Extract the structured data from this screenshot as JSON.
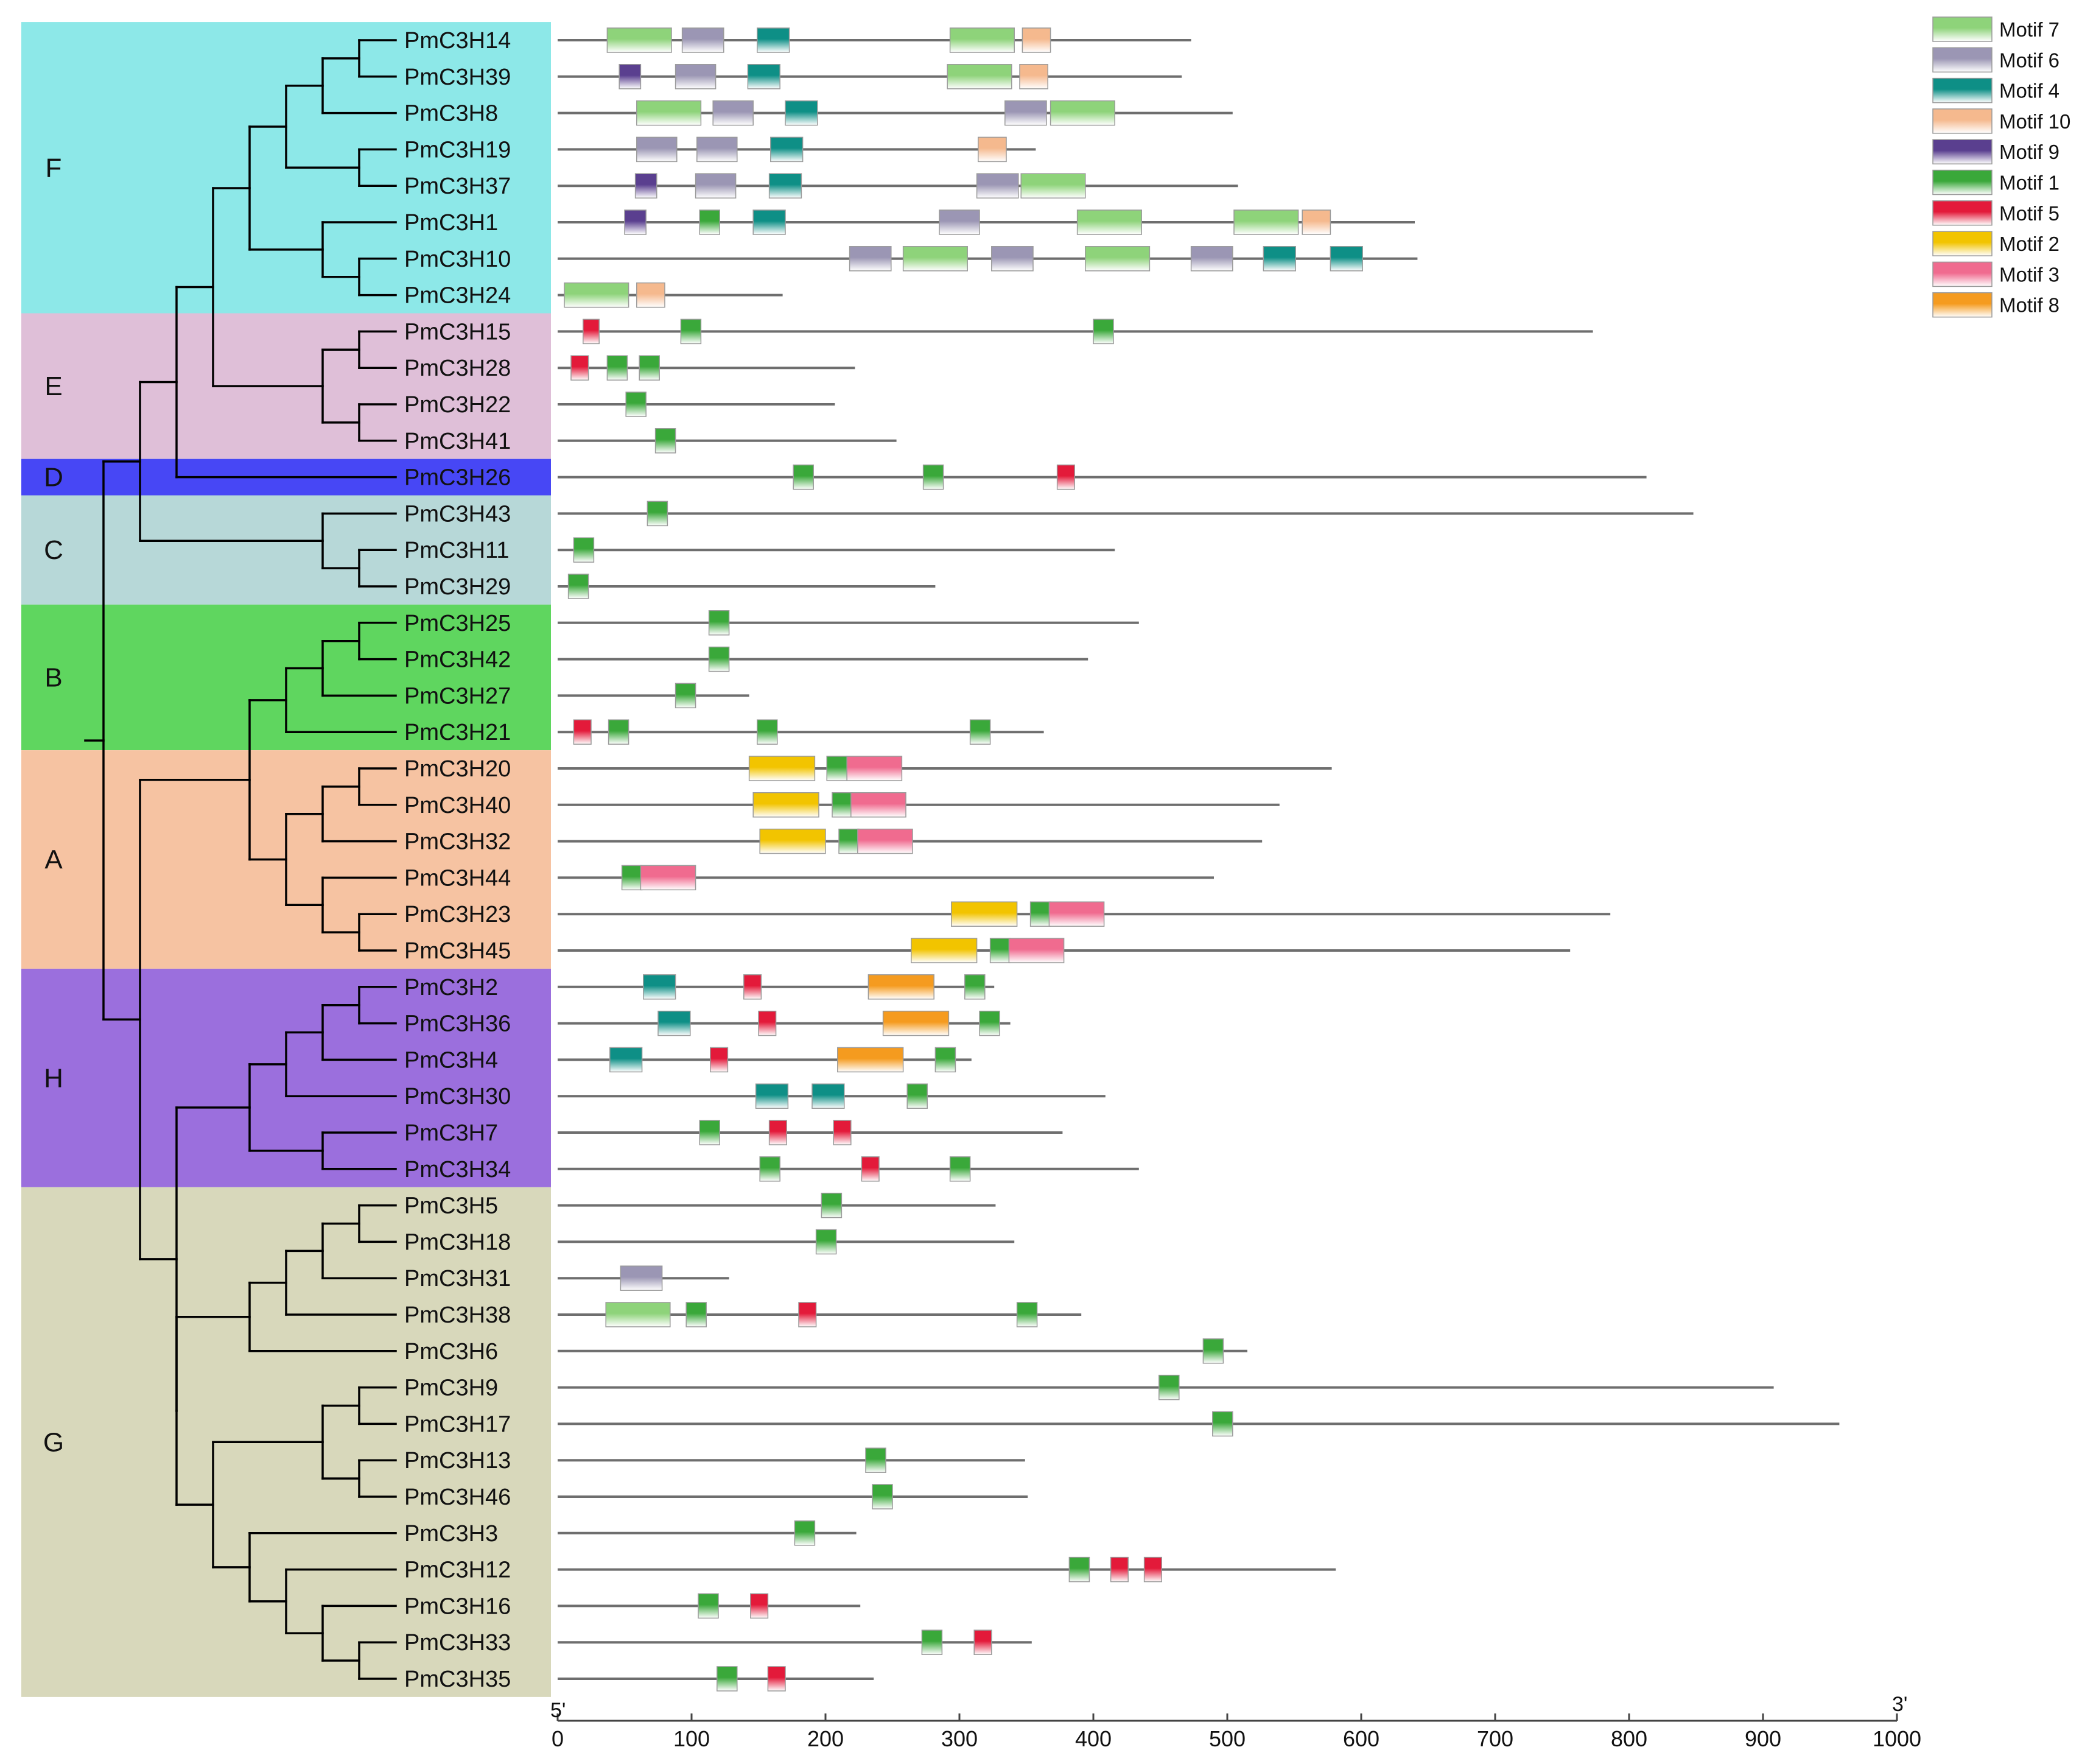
{
  "motifs": [
    {
      "id": "m7",
      "name": "Motif 7",
      "color": "#8ed37a"
    },
    {
      "id": "m6",
      "name": "Motif 6",
      "color": "#9b96b4"
    },
    {
      "id": "m4",
      "name": "Motif 4",
      "color": "#0e8f86"
    },
    {
      "id": "m10",
      "name": "Motif 10",
      "color": "#f5b98e"
    },
    {
      "id": "m9",
      "name": "Motif 9",
      "color": "#5a3f8f"
    },
    {
      "id": "m1",
      "name": "Motif 1",
      "color": "#3aa83a"
    },
    {
      "id": "m5",
      "name": "Motif 5",
      "color": "#e31a3a"
    },
    {
      "id": "m2",
      "name": "Motif 2",
      "color": "#f2c400"
    },
    {
      "id": "m3",
      "name": "Motif 3",
      "color": "#f06b8f"
    },
    {
      "id": "m8",
      "name": "Motif 8",
      "color": "#f59b1f"
    }
  ],
  "groups": [
    {
      "label": "F",
      "color": "#8de8e8",
      "first": 0,
      "last": 7
    },
    {
      "label": "E",
      "color": "#dfbfd8",
      "first": 8,
      "last": 11
    },
    {
      "label": "D",
      "color": "#4747f5",
      "first": 12,
      "last": 12
    },
    {
      "label": "C",
      "color": "#b7d8d8",
      "first": 13,
      "last": 15
    },
    {
      "label": "B",
      "color": "#5fd65f",
      "first": 16,
      "last": 19
    },
    {
      "label": "A",
      "color": "#f6c3a2",
      "first": 20,
      "last": 25
    },
    {
      "label": "H",
      "color": "#9b6fdd",
      "first": 26,
      "last": 31
    },
    {
      "label": "G",
      "color": "#d8d8bb",
      "first": 32,
      "last": 45
    }
  ],
  "axis": {
    "min": 0,
    "max": 1000,
    "ticks": [
      0,
      100,
      200,
      300,
      400,
      500,
      600,
      700,
      800,
      900,
      1000
    ],
    "start_label": "5'",
    "end_label": "3'"
  },
  "genes": [
    {
      "name": "PmC3H14",
      "length": 473,
      "motifs": [
        [
          "m7",
          37,
          85
        ],
        [
          "m6",
          93,
          124
        ],
        [
          "m4",
          149,
          173
        ],
        [
          "m7",
          293,
          341
        ],
        [
          "m10",
          347,
          368
        ]
      ]
    },
    {
      "name": "PmC3H39",
      "length": 466,
      "motifs": [
        [
          "m9",
          46,
          62
        ],
        [
          "m6",
          88,
          118
        ],
        [
          "m4",
          142,
          166
        ],
        [
          "m7",
          291,
          339
        ],
        [
          "m10",
          345,
          366
        ]
      ]
    },
    {
      "name": "PmC3H8",
      "length": 504,
      "motifs": [
        [
          "m7",
          59,
          107
        ],
        [
          "m6",
          116,
          146
        ],
        [
          "m4",
          170,
          194
        ],
        [
          "m6",
          334,
          365
        ],
        [
          "m7",
          368,
          416
        ]
      ]
    },
    {
      "name": "PmC3H19",
      "length": 357,
      "motifs": [
        [
          "m6",
          59,
          89
        ],
        [
          "m6",
          104,
          134
        ],
        [
          "m4",
          159,
          183
        ],
        [
          "m10",
          314,
          335
        ]
      ]
    },
    {
      "name": "PmC3H37",
      "length": 508,
      "motifs": [
        [
          "m9",
          58,
          74
        ],
        [
          "m6",
          103,
          133
        ],
        [
          "m4",
          158,
          182
        ],
        [
          "m6",
          313,
          344
        ],
        [
          "m7",
          346,
          394
        ]
      ]
    },
    {
      "name": "PmC3H1",
      "length": 640,
      "motifs": [
        [
          "m9",
          50,
          66
        ],
        [
          "m1",
          106,
          121
        ],
        [
          "m4",
          146,
          170
        ],
        [
          "m6",
          285,
          315
        ],
        [
          "m7",
          388,
          436
        ],
        [
          "m7",
          505,
          553
        ],
        [
          "m10",
          556,
          577
        ]
      ]
    },
    {
      "name": "PmC3H10",
      "length": 642,
      "motifs": [
        [
          "m6",
          218,
          249
        ],
        [
          "m7",
          258,
          306
        ],
        [
          "m6",
          324,
          355
        ],
        [
          "m7",
          394,
          442
        ],
        [
          "m6",
          473,
          504
        ],
        [
          "m4",
          527,
          551
        ],
        [
          "m4",
          577,
          601
        ]
      ]
    },
    {
      "name": "PmC3H24",
      "length": 168,
      "motifs": [
        [
          "m7",
          5,
          53
        ],
        [
          "m10",
          59,
          80
        ]
      ]
    },
    {
      "name": "PmC3H15",
      "length": 773,
      "motifs": [
        [
          "m5",
          19,
          31
        ],
        [
          "m1",
          92,
          107
        ],
        [
          "m1",
          400,
          415
        ]
      ]
    },
    {
      "name": "PmC3H28",
      "length": 222,
      "motifs": [
        [
          "m5",
          10,
          23
        ],
        [
          "m1",
          37,
          52
        ],
        [
          "m1",
          61,
          76
        ]
      ]
    },
    {
      "name": "PmC3H22",
      "length": 207,
      "motifs": [
        [
          "m1",
          51,
          66
        ]
      ]
    },
    {
      "name": "PmC3H41",
      "length": 253,
      "motifs": [
        [
          "m1",
          73,
          88
        ]
      ]
    },
    {
      "name": "PmC3H26",
      "length": 813,
      "motifs": [
        [
          "m1",
          176,
          191
        ],
        [
          "m1",
          273,
          288
        ],
        [
          "m5",
          373,
          386
        ]
      ]
    },
    {
      "name": "PmC3H43",
      "length": 848,
      "motifs": [
        [
          "m1",
          67,
          82
        ]
      ]
    },
    {
      "name": "PmC3H11",
      "length": 416,
      "motifs": [
        [
          "m1",
          12,
          27
        ]
      ]
    },
    {
      "name": "PmC3H29",
      "length": 282,
      "motifs": [
        [
          "m1",
          8,
          23
        ]
      ]
    },
    {
      "name": "PmC3H25",
      "length": 434,
      "motifs": [
        [
          "m1",
          113,
          128
        ]
      ]
    },
    {
      "name": "PmC3H42",
      "length": 396,
      "motifs": [
        [
          "m1",
          113,
          128
        ]
      ]
    },
    {
      "name": "PmC3H27",
      "length": 143,
      "motifs": [
        [
          "m1",
          88,
          103
        ]
      ]
    },
    {
      "name": "PmC3H21",
      "length": 363,
      "motifs": [
        [
          "m5",
          12,
          25
        ],
        [
          "m1",
          38,
          53
        ],
        [
          "m1",
          149,
          164
        ],
        [
          "m1",
          308,
          323
        ]
      ]
    },
    {
      "name": "PmC3H20",
      "length": 578,
      "motifs": [
        [
          "m2",
          143,
          192
        ],
        [
          "m1",
          201,
          216
        ],
        [
          "m3",
          216,
          257
        ]
      ]
    },
    {
      "name": "PmC3H40",
      "length": 539,
      "motifs": [
        [
          "m2",
          146,
          195
        ],
        [
          "m1",
          205,
          220
        ],
        [
          "m3",
          219,
          260
        ]
      ]
    },
    {
      "name": "PmC3H32",
      "length": 526,
      "motifs": [
        [
          "m2",
          151,
          200
        ],
        [
          "m1",
          210,
          225
        ],
        [
          "m3",
          224,
          265
        ]
      ]
    },
    {
      "name": "PmC3H44",
      "length": 490,
      "motifs": [
        [
          "m1",
          48,
          63
        ],
        [
          "m3",
          62,
          103
        ]
      ]
    },
    {
      "name": "PmC3H23",
      "length": 786,
      "motifs": [
        [
          "m2",
          294,
          343
        ],
        [
          "m1",
          353,
          368
        ],
        [
          "m3",
          367,
          408
        ]
      ]
    },
    {
      "name": "PmC3H45",
      "length": 756,
      "motifs": [
        [
          "m2",
          264,
          313
        ],
        [
          "m1",
          323,
          338
        ],
        [
          "m3",
          337,
          378
        ]
      ]
    },
    {
      "name": "PmC3H2",
      "length": 326,
      "motifs": [
        [
          "m4",
          64,
          88
        ],
        [
          "m5",
          139,
          152
        ],
        [
          "m8",
          232,
          281
        ],
        [
          "m1",
          304,
          319
        ]
      ]
    },
    {
      "name": "PmC3H36",
      "length": 338,
      "motifs": [
        [
          "m4",
          75,
          99
        ],
        [
          "m5",
          150,
          163
        ],
        [
          "m8",
          243,
          292
        ],
        [
          "m1",
          315,
          330
        ]
      ]
    },
    {
      "name": "PmC3H4",
      "length": 309,
      "motifs": [
        [
          "m4",
          39,
          63
        ],
        [
          "m5",
          114,
          127
        ],
        [
          "m8",
          209,
          258
        ],
        [
          "m1",
          282,
          297
        ]
      ]
    },
    {
      "name": "PmC3H30",
      "length": 409,
      "motifs": [
        [
          "m4",
          148,
          172
        ],
        [
          "m4",
          190,
          214
        ],
        [
          "m1",
          261,
          276
        ]
      ]
    },
    {
      "name": "PmC3H7",
      "length": 377,
      "motifs": [
        [
          "m1",
          106,
          121
        ],
        [
          "m5",
          158,
          171
        ],
        [
          "m5",
          206,
          219
        ]
      ]
    },
    {
      "name": "PmC3H34",
      "length": 434,
      "motifs": [
        [
          "m1",
          151,
          166
        ],
        [
          "m5",
          227,
          240
        ],
        [
          "m1",
          293,
          308
        ]
      ]
    },
    {
      "name": "PmC3H5",
      "length": 327,
      "motifs": [
        [
          "m1",
          197,
          212
        ]
      ]
    },
    {
      "name": "PmC3H18",
      "length": 341,
      "motifs": [
        [
          "m1",
          193,
          208
        ]
      ]
    },
    {
      "name": "PmC3H31",
      "length": 128,
      "motifs": [
        [
          "m6",
          47,
          78
        ]
      ]
    },
    {
      "name": "PmC3H38",
      "length": 391,
      "motifs": [
        [
          "m7",
          36,
          84
        ],
        [
          "m1",
          96,
          111
        ],
        [
          "m5",
          180,
          193
        ],
        [
          "m1",
          343,
          358
        ]
      ]
    },
    {
      "name": "PmC3H6",
      "length": 515,
      "motifs": [
        [
          "m1",
          482,
          497
        ]
      ]
    },
    {
      "name": "PmC3H9",
      "length": 908,
      "motifs": [
        [
          "m1",
          449,
          464
        ]
      ]
    },
    {
      "name": "PmC3H17",
      "length": 957,
      "motifs": [
        [
          "m1",
          489,
          504
        ]
      ]
    },
    {
      "name": "PmC3H13",
      "length": 349,
      "motifs": [
        [
          "m1",
          230,
          245
        ]
      ]
    },
    {
      "name": "PmC3H46",
      "length": 351,
      "motifs": [
        [
          "m1",
          235,
          250
        ]
      ]
    },
    {
      "name": "PmC3H3",
      "length": 223,
      "motifs": [
        [
          "m1",
          177,
          192
        ]
      ]
    },
    {
      "name": "PmC3H12",
      "length": 581,
      "motifs": [
        [
          "m1",
          382,
          397
        ],
        [
          "m5",
          413,
          426
        ],
        [
          "m5",
          438,
          451
        ]
      ]
    },
    {
      "name": "PmC3H16",
      "length": 226,
      "motifs": [
        [
          "m1",
          105,
          120
        ],
        [
          "m5",
          144,
          157
        ]
      ]
    },
    {
      "name": "PmC3H33",
      "length": 354,
      "motifs": [
        [
          "m1",
          272,
          287
        ],
        [
          "m5",
          311,
          324
        ]
      ]
    },
    {
      "name": "PmC3H35",
      "length": 236,
      "motifs": [
        [
          "m1",
          119,
          134
        ],
        [
          "m5",
          157,
          170
        ]
      ]
    }
  ]
}
